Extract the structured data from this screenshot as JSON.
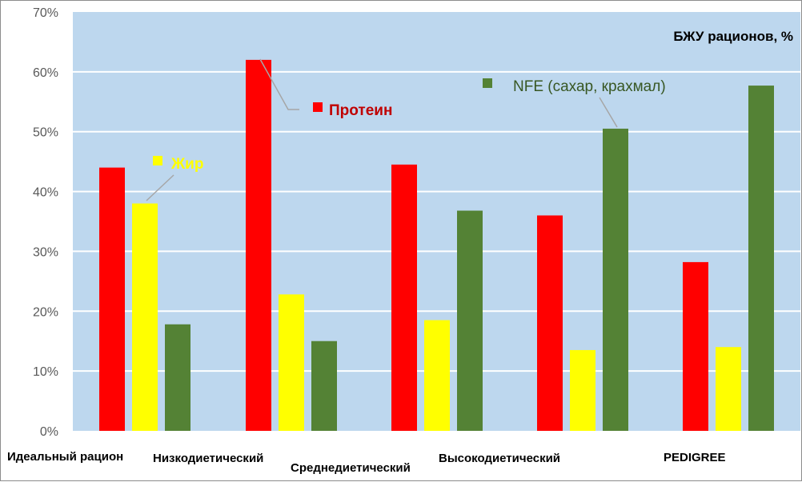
{
  "chart_data": {
    "type": "bar",
    "title": "БЖУ рационов, %",
    "categories": [
      "Идеальный рацион",
      "Низкодиетический",
      "Среднедиетический",
      "Высокодиетический",
      "PEDIGREE"
    ],
    "series": [
      {
        "name": "Протеин",
        "color": "#ff0000",
        "label_color": "#c00000",
        "values": [
          44,
          62,
          44.5,
          36,
          28.2
        ]
      },
      {
        "name": "Жир",
        "color": "#ffff00",
        "label_color": "#ffff00",
        "values": [
          38,
          22.8,
          18.5,
          13.5,
          14
        ]
      },
      {
        "name": "NFE (сахар, крахмал)",
        "color": "#548235",
        "label_color": "#385723",
        "values": [
          17.8,
          15,
          36.8,
          50.5,
          57.7
        ]
      }
    ],
    "ylim": [
      0,
      70
    ],
    "yticks": [
      "0%",
      "10%",
      "20%",
      "30%",
      "40%",
      "50%",
      "60%",
      "70%"
    ],
    "xlabel": "",
    "ylabel": "",
    "grid": true,
    "colors": {
      "plot_bg": "#bdd7ee",
      "grid": "#ffffff"
    }
  }
}
